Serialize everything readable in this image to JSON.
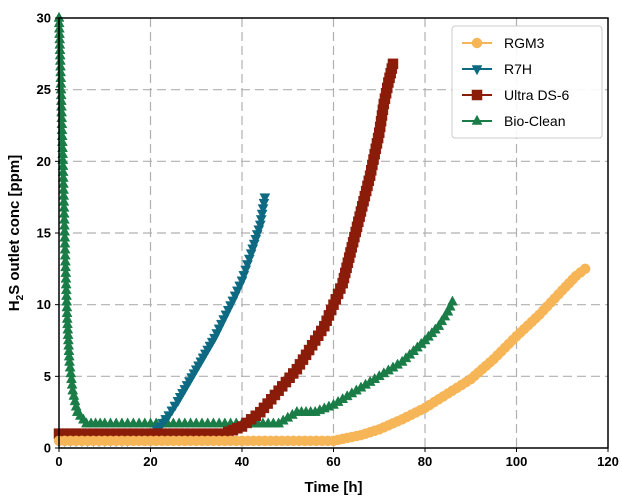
{
  "chart_data": {
    "type": "line",
    "xlabel": "Time [h]",
    "ylabel": "H2S outlet conc [ppm]",
    "xlim": [
      0,
      120
    ],
    "ylim": [
      0,
      30
    ],
    "xticks": [
      0,
      20,
      40,
      60,
      80,
      100,
      120
    ],
    "yticks": [
      0,
      5,
      10,
      15,
      20,
      25,
      30
    ],
    "xtick_labels": [
      "0",
      "20",
      "40",
      "60",
      "80",
      "100",
      "120"
    ],
    "ytick_labels": [
      "0",
      "5",
      "10",
      "15",
      "20",
      "25",
      "30"
    ],
    "grid": true,
    "legend_position": "top-right",
    "series": [
      {
        "name": "RGM3",
        "color": "#f6b657",
        "marker": "circle",
        "x": [
          0,
          10,
          20,
          30,
          40,
          50,
          60,
          63,
          66,
          70,
          75,
          80,
          85,
          90,
          95,
          100,
          105,
          110,
          113,
          115
        ],
        "y": [
          0.5,
          0.5,
          0.5,
          0.5,
          0.5,
          0.5,
          0.5,
          0.7,
          0.9,
          1.3,
          2.0,
          2.8,
          3.8,
          4.8,
          6.2,
          7.8,
          9.3,
          11.0,
          12.0,
          12.5
        ]
      },
      {
        "name": "R7H",
        "color": "#0e6a82",
        "marker": "triangle-down",
        "x": [
          0,
          5,
          10,
          15,
          18,
          20,
          22,
          24,
          26,
          28,
          30,
          32,
          34,
          36,
          38,
          40,
          42,
          44,
          45
        ],
        "y": [
          0.5,
          0.5,
          0.5,
          0.5,
          0.7,
          0.9,
          1.5,
          2.3,
          3.3,
          4.4,
          5.5,
          6.6,
          7.7,
          9.0,
          10.3,
          11.7,
          13.6,
          15.6,
          17.5
        ]
      },
      {
        "name": "Ultra DS-6",
        "color": "#8b1c0a",
        "marker": "square",
        "x": [
          0,
          10,
          20,
          30,
          36,
          40,
          44,
          48,
          52,
          56,
          58,
          60,
          62,
          64,
          66,
          68,
          70,
          71,
          72,
          73
        ],
        "y": [
          1.0,
          1.0,
          1.0,
          1.0,
          1.0,
          1.5,
          2.5,
          4.0,
          5.5,
          7.5,
          8.5,
          10.0,
          11.5,
          14.0,
          16.5,
          19.0,
          22.0,
          24.0,
          25.5,
          26.8
        ]
      },
      {
        "name": "Bio-Clean",
        "color": "#1a7d47",
        "marker": "triangle-up",
        "x": [
          0,
          0.3,
          0.6,
          1.0,
          1.4,
          1.8,
          2.3,
          3.0,
          4.0,
          6.0,
          10,
          20,
          30,
          40,
          48,
          52,
          56,
          60,
          65,
          70,
          75,
          80,
          83,
          85,
          86
        ],
        "y": [
          30,
          27,
          23,
          18,
          13,
          9,
          6,
          4,
          2.5,
          1.7,
          1.7,
          1.7,
          1.7,
          1.7,
          1.7,
          2.5,
          2.5,
          3.0,
          4.0,
          5.0,
          6.0,
          7.5,
          8.5,
          9.5,
          10.2
        ]
      }
    ]
  }
}
